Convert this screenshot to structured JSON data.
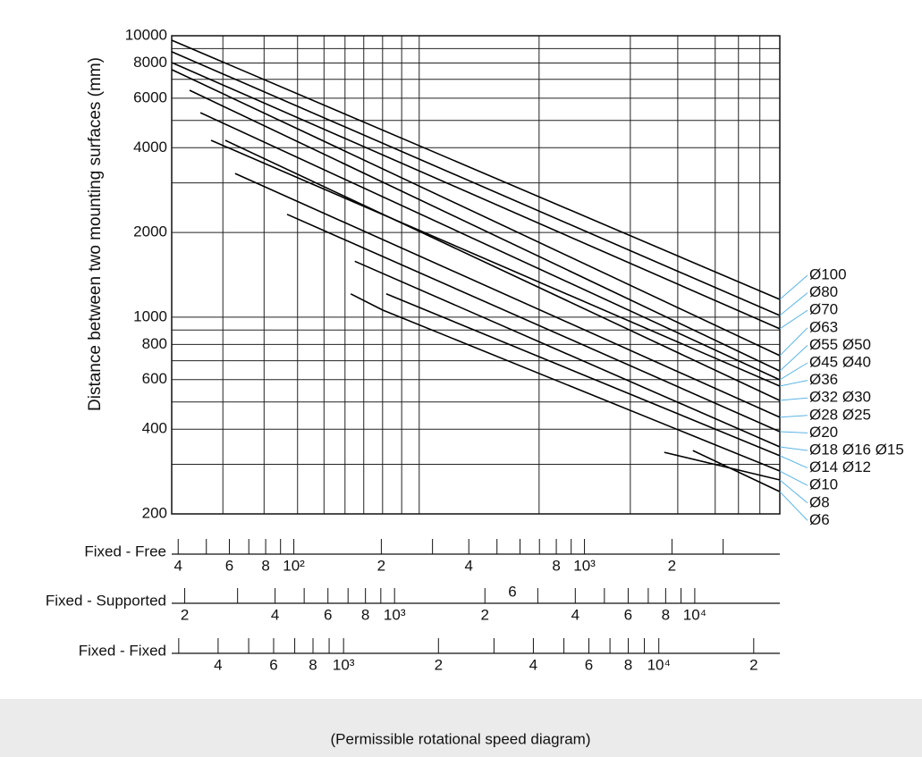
{
  "chart_data": {
    "type": "line",
    "y_label": "Distance between two mounting surfaces (mm)",
    "log_x": true,
    "log_y": true,
    "grid": true,
    "color": "#000000",
    "leader_color": "#5bb4e5",
    "xlim": [
      38,
      4700
    ],
    "ylim": [
      200,
      10000
    ],
    "yticks": [
      200,
      400,
      600,
      800,
      1000,
      2000,
      4000,
      6000,
      8000,
      10000
    ],
    "y_minor": [
      300,
      500,
      700,
      900,
      3000,
      5000,
      7000,
      9000
    ],
    "xgrid": [
      57,
      79,
      103,
      127,
      150,
      174,
      202,
      235,
      270,
      698,
      1438,
      2094,
      2817,
      3387,
      4013
    ],
    "series": [
      {
        "name": "Ø100",
        "x": [
          38,
          4700
        ],
        "values": [
          9640,
          1157
        ]
      },
      {
        "name": "Ø80",
        "x": [
          38,
          4700
        ],
        "values": [
          8770,
          1014
        ]
      },
      {
        "name": "Ø70",
        "x": [
          38,
          4700
        ],
        "values": [
          8030,
          909
        ]
      },
      {
        "name": "Ø63",
        "x": [
          38,
          4700
        ],
        "values": [
          7580,
          730
        ]
      },
      {
        "name": "Ø55 Ø50",
        "x": [
          43.8,
          4700
        ],
        "values": [
          6400,
          644
        ]
      },
      {
        "name": "Ø45 Ø40",
        "x": [
          47.7,
          4700
        ],
        "values": [
          5330,
          599
        ]
      },
      {
        "name": "Ø36",
        "x": [
          51.9,
          4700
        ],
        "values": [
          4250,
          569
        ]
      },
      {
        "name": "Ø32 Ø30",
        "x": [
          58.1,
          4700
        ],
        "values": [
          4250,
          506
        ]
      },
      {
        "name": "Ø28 Ø25",
        "x": [
          62.8,
          4700
        ],
        "values": [
          3240,
          441
        ]
      },
      {
        "name": "Ø20",
        "x": [
          94.8,
          4700
        ],
        "values": [
          2320,
          392
        ]
      },
      {
        "name": "Ø18 Ø16 Ø15",
        "x": [
          162,
          4700
        ],
        "values": [
          1580,
          346
        ]
      },
      {
        "name": "Ø14 Ø12",
        "x": [
          208,
          4700
        ],
        "values": [
          1210,
          322
        ]
      },
      {
        "name": "Ø10",
        "x": [
          157,
          202,
          4700
        ],
        "values": [
          1210,
          1060,
          284
        ]
      },
      {
        "name": "Ø8",
        "x": [
          1882,
          4700
        ],
        "values": [
          331,
          264
        ]
      },
      {
        "name": "Ø6",
        "x": [
          2361,
          4700
        ],
        "values": [
          336,
          240
        ]
      }
    ],
    "speed_scales": [
      {
        "name": "Fixed - Free",
        "xlim": [
          38,
          4700
        ],
        "xticks": [
          {
            "value": 40,
            "label": "4"
          },
          {
            "value": 60,
            "label": "6"
          },
          {
            "value": 80,
            "label": "8"
          },
          {
            "value": 100,
            "label": "10²"
          },
          {
            "value": 200,
            "label": "2"
          },
          {
            "value": 400,
            "label": "4"
          },
          {
            "value": 800,
            "label": "8"
          },
          {
            "value": 1000,
            "label": "10³"
          },
          {
            "value": 2000,
            "label": "2"
          }
        ],
        "minor_ticks": [
          50,
          70,
          90,
          300,
          500,
          600,
          700,
          900,
          3000
        ]
      },
      {
        "name": "Fixed - Supported",
        "xlim": [
          181,
          19200
        ],
        "stray_label": "6",
        "xticks": [
          {
            "value": 200,
            "label": "2"
          },
          {
            "value": 400,
            "label": "4"
          },
          {
            "value": 600,
            "label": "6"
          },
          {
            "value": 800,
            "label": "8"
          },
          {
            "value": 1000,
            "label": "10³"
          },
          {
            "value": 2000,
            "label": "2"
          },
          {
            "value": 4000,
            "label": "4"
          },
          {
            "value": 6000,
            "label": "6"
          },
          {
            "value": 8000,
            "label": "8"
          },
          {
            "value": 10000,
            "label": "10⁴"
          }
        ],
        "minor_ticks": [
          300,
          500,
          700,
          900,
          3000,
          5000,
          7000,
          9000
        ]
      },
      {
        "name": "Fixed - Fixed",
        "xlim": [
          285,
          24200
        ],
        "xticks": [
          {
            "value": 400,
            "label": "4"
          },
          {
            "value": 600,
            "label": "6"
          },
          {
            "value": 800,
            "label": "8"
          },
          {
            "value": 1000,
            "label": "10³"
          },
          {
            "value": 2000,
            "label": "2"
          },
          {
            "value": 4000,
            "label": "4"
          },
          {
            "value": 6000,
            "label": "6"
          },
          {
            "value": 8000,
            "label": "8"
          },
          {
            "value": 10000,
            "label": "10⁴"
          },
          {
            "value": 20000,
            "label": "2"
          }
        ],
        "minor_ticks": [
          300,
          500,
          700,
          900,
          3000,
          5000,
          7000,
          9000
        ]
      }
    ]
  },
  "caption": "(Permissible rotational speed diagram)"
}
